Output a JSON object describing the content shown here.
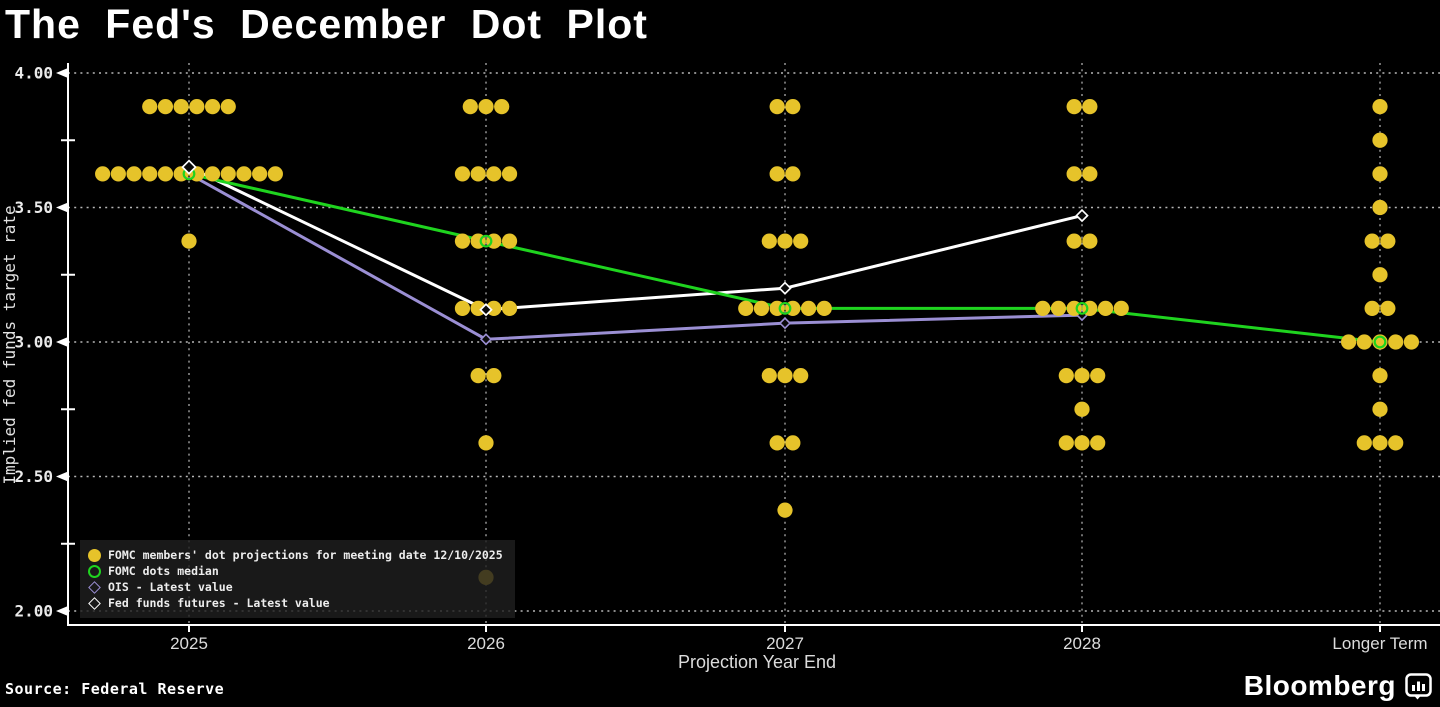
{
  "title": "The Fed's December Dot Plot",
  "source": "Source: Federal Reserve",
  "brand": {
    "name": "Bloomberg"
  },
  "chart_data": {
    "type": "scatter",
    "title": "The Fed's December Dot Plot",
    "xlabel": "Projection Year End",
    "ylabel": "Implied fed funds target rate",
    "ylim": [
      2.0,
      4.0
    ],
    "yticks_major": [
      "4.00",
      "3.50",
      "3.00",
      "2.50",
      "2.00"
    ],
    "yticks_major_values": [
      4.0,
      3.5,
      3.0,
      2.5,
      2.0
    ],
    "yticks_minor_values": [
      3.75,
      3.25,
      2.75,
      2.25
    ],
    "categories": [
      "2025",
      "2026",
      "2027",
      "2028",
      "Longer Term"
    ],
    "grid": "dotted",
    "legend_position": "bottom-left",
    "dot_color": "#e6c32a",
    "dots": [
      {
        "category": "2025",
        "groups": [
          [
            3.875,
            6
          ],
          [
            3.625,
            12
          ],
          [
            3.375,
            1
          ]
        ]
      },
      {
        "category": "2026",
        "groups": [
          [
            3.875,
            3
          ],
          [
            3.625,
            4
          ],
          [
            3.375,
            4
          ],
          [
            3.125,
            4
          ],
          [
            2.875,
            2
          ],
          [
            2.625,
            1
          ],
          [
            2.125,
            1
          ]
        ]
      },
      {
        "category": "2027",
        "groups": [
          [
            3.875,
            2
          ],
          [
            3.625,
            2
          ],
          [
            3.375,
            3
          ],
          [
            3.125,
            6
          ],
          [
            2.875,
            3
          ],
          [
            2.625,
            2
          ],
          [
            2.375,
            1
          ]
        ]
      },
      {
        "category": "2028",
        "groups": [
          [
            3.875,
            2
          ],
          [
            3.625,
            2
          ],
          [
            3.375,
            2
          ],
          [
            3.125,
            6
          ],
          [
            2.875,
            3
          ],
          [
            2.75,
            1
          ],
          [
            2.625,
            3
          ]
        ]
      },
      {
        "category": "Longer Term",
        "groups": [
          [
            3.875,
            1
          ],
          [
            3.75,
            1
          ],
          [
            3.625,
            1
          ],
          [
            3.5,
            1
          ],
          [
            3.375,
            2
          ],
          [
            3.25,
            1
          ],
          [
            3.125,
            2
          ],
          [
            3.0,
            5
          ],
          [
            2.875,
            1
          ],
          [
            2.75,
            1
          ],
          [
            2.625,
            3
          ]
        ]
      }
    ],
    "series": [
      {
        "name": "FOMC dots median",
        "color": "#1fd41f",
        "marker": "open-circle",
        "values": [
          3.625,
          3.375,
          3.125,
          3.125,
          3.0
        ]
      },
      {
        "name": "OIS - Latest value",
        "color": "#9b8fd4",
        "marker": "open-diamond",
        "values": [
          3.625,
          3.01,
          3.07,
          3.1,
          null
        ]
      },
      {
        "name": "Fed funds futures - Latest value",
        "color": "#ffffff",
        "marker": "open-diamond",
        "values": [
          3.65,
          3.12,
          3.2,
          3.47,
          null
        ]
      }
    ],
    "legend": [
      {
        "marker": "dot",
        "color": "#e6c32a",
        "label": "FOMC members' dot projections for meeting date 12/10/2025"
      },
      {
        "marker": "open-circle",
        "color": "#1fd41f",
        "label": "FOMC dots median"
      },
      {
        "marker": "open-diamond",
        "color": "#9b8fd4",
        "label": "OIS - Latest value"
      },
      {
        "marker": "open-diamond",
        "color": "#ffffff",
        "label": "Fed funds futures - Latest value"
      }
    ]
  }
}
